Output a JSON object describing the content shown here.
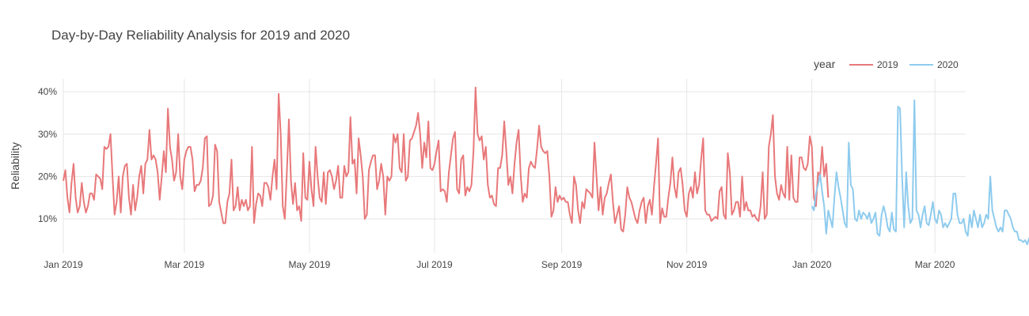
{
  "chart_data": {
    "type": "line",
    "title": "Day-by-Day Reliability Analysis for 2019 and 2020",
    "xlabel": "",
    "ylabel": "Reliability",
    "x_range": [
      "2019-01-01",
      "2020-03-16"
    ],
    "ylim": [
      0.02,
      0.43
    ],
    "x_ticks": [
      {
        "date": "2019-01-01",
        "label": "Jan 2019"
      },
      {
        "date": "2019-03-01",
        "label": "Mar 2019"
      },
      {
        "date": "2019-05-01",
        "label": "May 2019"
      },
      {
        "date": "2019-07-01",
        "label": "Jul 2019"
      },
      {
        "date": "2019-09-01",
        "label": "Sep 2019"
      },
      {
        "date": "2019-11-01",
        "label": "Nov 2019"
      },
      {
        "date": "2020-01-01",
        "label": "Jan 2020"
      },
      {
        "date": "2020-03-01",
        "label": "Mar 2020"
      }
    ],
    "y_ticks": [
      {
        "value": 0.1,
        "label": "10%"
      },
      {
        "value": 0.2,
        "label": "20%"
      },
      {
        "value": 0.3,
        "label": "30%"
      },
      {
        "value": 0.4,
        "label": "40%"
      }
    ],
    "grid": true,
    "legend": {
      "title": "year",
      "position": "top-right"
    },
    "series": [
      {
        "name": "2019",
        "color": "#e8787a",
        "start": "2019-01-01",
        "values": [
          0.19,
          0.215,
          0.15,
          0.115,
          0.185,
          0.23,
          0.15,
          0.115,
          0.13,
          0.185,
          0.14,
          0.115,
          0.13,
          0.16,
          0.16,
          0.145,
          0.205,
          0.2,
          0.195,
          0.17,
          0.27,
          0.265,
          0.27,
          0.3,
          0.2,
          0.11,
          0.14,
          0.2,
          0.115,
          0.2,
          0.225,
          0.23,
          0.15,
          0.11,
          0.18,
          0.12,
          0.15,
          0.2,
          0.225,
          0.16,
          0.23,
          0.24,
          0.31,
          0.24,
          0.25,
          0.24,
          0.21,
          0.145,
          0.2,
          0.26,
          0.21,
          0.36,
          0.27,
          0.24,
          0.19,
          0.21,
          0.3,
          0.2,
          0.17,
          0.24,
          0.26,
          0.27,
          0.27,
          0.24,
          0.165,
          0.18,
          0.18,
          0.19,
          0.22,
          0.29,
          0.295,
          0.13,
          0.135,
          0.155,
          0.275,
          0.26,
          0.14,
          0.115,
          0.09,
          0.09,
          0.14,
          0.16,
          0.24,
          0.12,
          0.13,
          0.175,
          0.12,
          0.145,
          0.13,
          0.145,
          0.12,
          0.13,
          0.27,
          0.09,
          0.135,
          0.16,
          0.155,
          0.13,
          0.185,
          0.185,
          0.175,
          0.145,
          0.2,
          0.24,
          0.17,
          0.395,
          0.3,
          0.13,
          0.1,
          0.21,
          0.335,
          0.19,
          0.135,
          0.185,
          0.12,
          0.13,
          0.095,
          0.255,
          0.15,
          0.145,
          0.235,
          0.17,
          0.13,
          0.27,
          0.2,
          0.15,
          0.14,
          0.21,
          0.135,
          0.21,
          0.215,
          0.2,
          0.17,
          0.19,
          0.225,
          0.15,
          0.15,
          0.225,
          0.2,
          0.21,
          0.34,
          0.23,
          0.24,
          0.16,
          0.29,
          0.25,
          0.2,
          0.1,
          0.11,
          0.215,
          0.235,
          0.25,
          0.25,
          0.17,
          0.19,
          0.23,
          0.2,
          0.11,
          0.2,
          0.19,
          0.2,
          0.3,
          0.28,
          0.3,
          0.22,
          0.21,
          0.3,
          0.19,
          0.2,
          0.285,
          0.29,
          0.305,
          0.32,
          0.35,
          0.3,
          0.22,
          0.28,
          0.245,
          0.33,
          0.22,
          0.215,
          0.23,
          0.26,
          0.285,
          0.165,
          0.17,
          0.165,
          0.14,
          0.21,
          0.25,
          0.29,
          0.305,
          0.17,
          0.16,
          0.24,
          0.25,
          0.155,
          0.175,
          0.165,
          0.18,
          0.26,
          0.41,
          0.3,
          0.285,
          0.295,
          0.24,
          0.27,
          0.18,
          0.15,
          0.155,
          0.135,
          0.13,
          0.22,
          0.22,
          0.25,
          0.33,
          0.26,
          0.18,
          0.2,
          0.16,
          0.23,
          0.28,
          0.31,
          0.205,
          0.14,
          0.16,
          0.15,
          0.22,
          0.235,
          0.225,
          0.22,
          0.265,
          0.32,
          0.27,
          0.26,
          0.255,
          0.26,
          0.2,
          0.105,
          0.12,
          0.175,
          0.14,
          0.155,
          0.145,
          0.15,
          0.14,
          0.14,
          0.11,
          0.09,
          0.2,
          0.18,
          0.12,
          0.09,
          0.14,
          0.125,
          0.17,
          0.165,
          0.16,
          0.15,
          0.28,
          0.2,
          0.12,
          0.175,
          0.11,
          0.15,
          0.16,
          0.185,
          0.205,
          0.14,
          0.09,
          0.11,
          0.13,
          0.075,
          0.07,
          0.11,
          0.175,
          0.15,
          0.14,
          0.12,
          0.1,
          0.09,
          0.12,
          0.14,
          0.15,
          0.09,
          0.13,
          0.145,
          0.11,
          0.175,
          0.23,
          0.29,
          0.09,
          0.125,
          0.105,
          0.105,
          0.15,
          0.185,
          0.245,
          0.175,
          0.15,
          0.21,
          0.22,
          0.18,
          0.12,
          0.105,
          0.16,
          0.175,
          0.15,
          0.21,
          0.16,
          0.18,
          0.24,
          0.29,
          0.12,
          0.11,
          0.11,
          0.095,
          0.1,
          0.105,
          0.1,
          0.165,
          0.175,
          0.11,
          0.1,
          0.255,
          0.21,
          0.11,
          0.12,
          0.14,
          0.14,
          0.105,
          0.2,
          0.12,
          0.14,
          0.12,
          0.12,
          0.105,
          0.11,
          0.1,
          0.095,
          0.13,
          0.21,
          0.1,
          0.11,
          0.27,
          0.3,
          0.345,
          0.2,
          0.16,
          0.145,
          0.18,
          0.16,
          0.15,
          0.27,
          0.145,
          0.25,
          0.15,
          0.14,
          0.14,
          0.245,
          0.245,
          0.22,
          0.215,
          0.23,
          0.295,
          0.27,
          0.15,
          0.13,
          0.21,
          0.2,
          0.27,
          0.2,
          0.23,
          0.15
        ]
      },
      {
        "name": "2020",
        "color": "#8ecbee",
        "start": "2020-01-01",
        "values": [
          0.13,
          0.12,
          0.16,
          0.18,
          0.205,
          0.165,
          0.13,
          0.065,
          0.12,
          0.1,
          0.08,
          0.15,
          0.21,
          0.175,
          0.15,
          0.12,
          0.09,
          0.08,
          0.28,
          0.18,
          0.17,
          0.1,
          0.095,
          0.12,
          0.1,
          0.115,
          0.11,
          0.1,
          0.115,
          0.09,
          0.1,
          0.115,
          0.065,
          0.06,
          0.11,
          0.13,
          0.11,
          0.08,
          0.07,
          0.115,
          0.075,
          0.07,
          0.365,
          0.36,
          0.2,
          0.08,
          0.21,
          0.13,
          0.09,
          0.1,
          0.38,
          0.12,
          0.11,
          0.08,
          0.11,
          0.13,
          0.09,
          0.085,
          0.11,
          0.14,
          0.1,
          0.09,
          0.12,
          0.11,
          0.08,
          0.09,
          0.08,
          0.09,
          0.1,
          0.16,
          0.16,
          0.11,
          0.09,
          0.09,
          0.1,
          0.07,
          0.06,
          0.11,
          0.08,
          0.12,
          0.1,
          0.08,
          0.11,
          0.08,
          0.09,
          0.11,
          0.1,
          0.2,
          0.12,
          0.1,
          0.08,
          0.07,
          0.08,
          0.07,
          0.12,
          0.12,
          0.11,
          0.1,
          0.08,
          0.07,
          0.07,
          0.05,
          0.05,
          0.045,
          0.05,
          0.04,
          0.055,
          0.055
        ]
      }
    ]
  }
}
